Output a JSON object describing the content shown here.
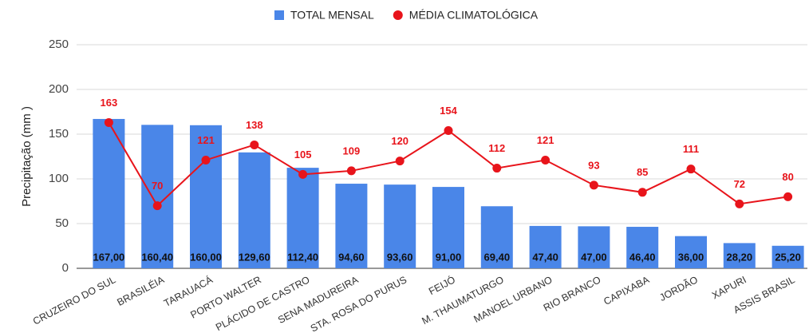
{
  "chart_data": {
    "type": "combo",
    "y_label": "Precipitação (mm )",
    "categories": [
      "CRUZEIRO DO SUL",
      "BRASILÉIA",
      "TARAUACÁ",
      "PORTO WALTER",
      "PLÁCIDO DE CASTRO",
      "SENA MADUREIRA",
      "STA. ROSA DO PURUS",
      "FEIJÓ",
      "M. THAUMATURGO",
      "MANOEL URBANO",
      "RIO BRANCO",
      "CAPIXABA",
      "JORDÃO",
      "XAPURI",
      "ASSIS BRASIL"
    ],
    "series": [
      {
        "name": "TOTAL MENSAL",
        "type": "bar",
        "color": "#4a86e8",
        "values": [
          167.0,
          160.4,
          160.0,
          129.6,
          112.4,
          94.6,
          93.6,
          91.0,
          69.4,
          47.4,
          47.0,
          46.4,
          36.0,
          28.2,
          25.2
        ],
        "value_labels": [
          "167,00",
          "160,40",
          "160,00",
          "129,60",
          "112,40",
          "94,60",
          "93,60",
          "91,00",
          "69,40",
          "47,40",
          "47,00",
          "46,40",
          "36,00",
          "28,20",
          "25,20"
        ]
      },
      {
        "name": "MÉDIA CLIMATOLÓGICA",
        "type": "line",
        "color": "#e8141b",
        "values": [
          163,
          70,
          121,
          138,
          105,
          109,
          120,
          154,
          112,
          121,
          93,
          85,
          111,
          72,
          80
        ]
      }
    ],
    "ylim": [
      0,
      250
    ],
    "yticks": [
      0,
      50,
      100,
      150,
      200,
      250
    ],
    "grid": true
  }
}
